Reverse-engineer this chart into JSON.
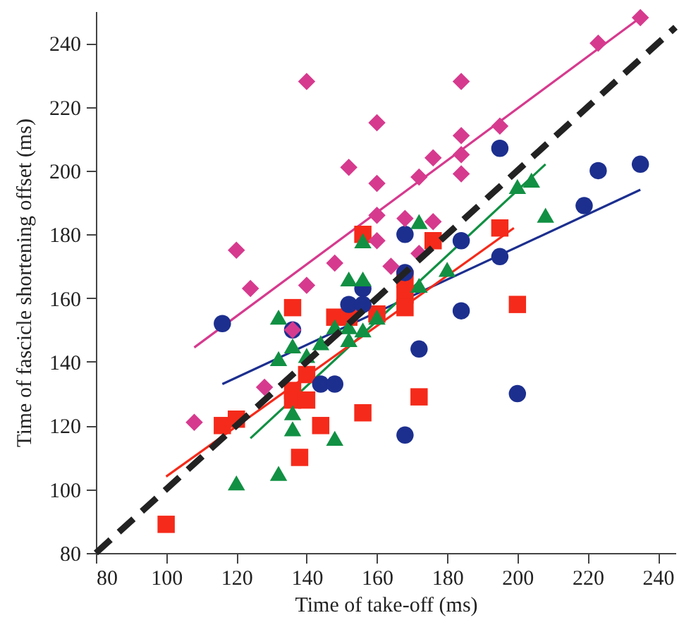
{
  "chart_data": {
    "type": "scatter",
    "xlabel": "Time of take-off (ms)",
    "ylabel": "Time of fascicle shortening offset (ms)",
    "xlim": [
      80,
      245
    ],
    "ylim": [
      80,
      250
    ],
    "xticks": [
      80,
      100,
      120,
      140,
      160,
      180,
      200,
      220,
      240
    ],
    "yticks": [
      80,
      100,
      120,
      140,
      160,
      180,
      200,
      220,
      240
    ],
    "grid": false,
    "series": [
      {
        "type": "line",
        "color": "#d63a8e",
        "x": [
          108,
          235
        ],
        "values": [
          144.5,
          248
        ]
      },
      {
        "type": "line",
        "color": "#1c2f8f",
        "x": [
          116,
          235
        ],
        "values": [
          133,
          194
        ]
      },
      {
        "type": "line",
        "color": "#119043",
        "x": [
          124,
          208
        ],
        "values": [
          116,
          202
        ]
      },
      {
        "type": "line",
        "color": "#f52a1a",
        "x": [
          100,
          199
        ],
        "values": [
          104,
          182
        ]
      },
      {
        "marker": "square",
        "color": "#f52a1a",
        "x": [
          100,
          116,
          120,
          136,
          136,
          136,
          138,
          140,
          140,
          144,
          148,
          152,
          156,
          156,
          160,
          168,
          168,
          168,
          172,
          176,
          195,
          200
        ],
        "values": [
          89,
          120,
          122,
          157,
          131,
          128,
          110,
          136,
          128,
          120,
          154,
          154,
          180,
          124,
          155,
          166,
          161,
          157,
          129,
          178,
          182,
          158
        ]
      },
      {
        "marker": "circle",
        "color": "#1c2f8f",
        "x": [
          116,
          136,
          144,
          148,
          152,
          156,
          156,
          168,
          168,
          168,
          172,
          184,
          184,
          195,
          195,
          200,
          219,
          223,
          235
        ],
        "values": [
          152,
          150,
          133,
          133,
          158,
          163,
          158,
          180,
          168,
          117,
          144,
          178,
          156,
          173,
          207,
          130,
          189,
          200,
          202
        ]
      },
      {
        "marker": "triangle",
        "color": "#119043",
        "x": [
          120,
          132,
          132,
          132,
          136,
          136,
          136,
          140,
          144,
          148,
          148,
          152,
          152,
          152,
          156,
          156,
          156,
          160,
          172,
          172,
          180,
          200,
          204,
          208
        ],
        "values": [
          102,
          105,
          154,
          141,
          145,
          124,
          119,
          142,
          146,
          116,
          151,
          166,
          151,
          147,
          178,
          166,
          150,
          154,
          184,
          164,
          169,
          195,
          197,
          186
        ]
      },
      {
        "marker": "diamond",
        "color": "#d63a8e",
        "x": [
          108,
          120,
          124,
          128,
          136,
          140,
          140,
          148,
          152,
          160,
          160,
          160,
          160,
          164,
          168,
          172,
          172,
          176,
          176,
          184,
          184,
          184,
          184,
          195,
          223,
          235
        ],
        "values": [
          121,
          175,
          163,
          132,
          150,
          228,
          164,
          171,
          201,
          215,
          196,
          186,
          178,
          170,
          185,
          198,
          174,
          204,
          184,
          228,
          211,
          205,
          199,
          214,
          240,
          248
        ]
      },
      {
        "type": "line",
        "line_style": "dashed",
        "color": "#222222",
        "x": [
          80,
          245
        ],
        "values": [
          80,
          245
        ]
      }
    ]
  }
}
